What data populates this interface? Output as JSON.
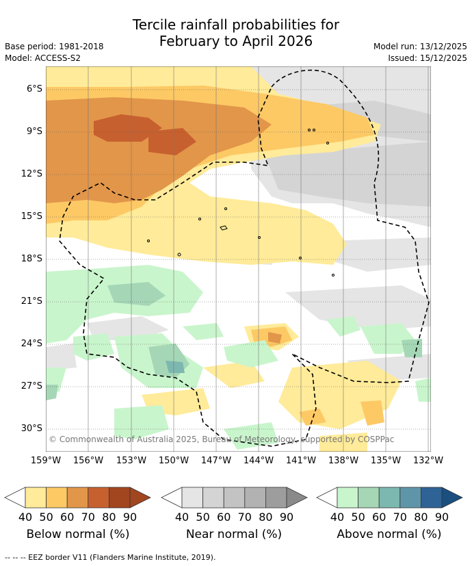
{
  "title_line1": "Tercile rainfall probabilities for",
  "title_line2": "February to April 2026",
  "base_period": "Base period: 1981-2018",
  "model": "Model: ACCESS-S2",
  "model_run": "Model run: 13/12/2025",
  "issued": "Issued: 15/12/2025",
  "lat_ticks": [
    "6°S",
    "9°S",
    "12°S",
    "15°S",
    "18°S",
    "21°S",
    "24°S",
    "27°S",
    "30°S"
  ],
  "lon_ticks": [
    "159°W",
    "156°W",
    "153°W",
    "150°W",
    "147°W",
    "144°W",
    "141°W",
    "138°W",
    "135°W",
    "132°W"
  ],
  "copyright": "© Commonwealth of Australia 2025, Bureau of Meteorology, supported by COSPPac",
  "colorbars": [
    {
      "label": "Below normal (%)",
      "ticks": [
        "40",
        "50",
        "60",
        "70",
        "80",
        "90"
      ],
      "colors": [
        "#ffeb99",
        "#fdc965",
        "#e2964a",
        "#c7602f",
        "#a2461f",
        "#a2461f"
      ]
    },
    {
      "label": "Near normal (%)",
      "ticks": [
        "40",
        "50",
        "60",
        "70",
        "80",
        "90"
      ],
      "colors": [
        "#e5e5e5",
        "#d4d4d4",
        "#c3c3c3",
        "#b2b2b2",
        "#9d9d9d",
        "#8a8a8a"
      ]
    },
    {
      "label": "Above normal (%)",
      "ticks": [
        "40",
        "50",
        "60",
        "70",
        "80",
        "90"
      ],
      "colors": [
        "#c9f5cc",
        "#a5d7b6",
        "#7cb8b0",
        "#5e95a8",
        "#2f6295",
        "#1a4f80"
      ]
    }
  ],
  "footnote": "--  --  -- EEZ border V11 (Flanders Marine Institute, 2019).",
  "colors": {
    "grid": "#555555",
    "eez": "#000000"
  }
}
